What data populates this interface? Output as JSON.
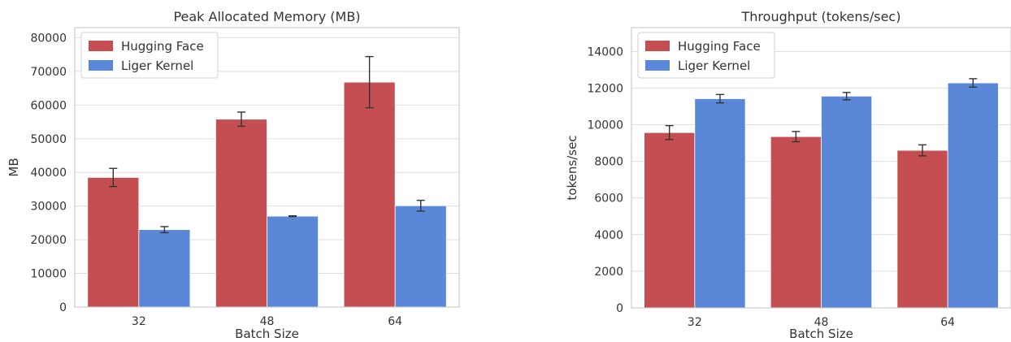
{
  "chart_data": [
    {
      "type": "bar",
      "title": "Peak Allocated Memory (MB)",
      "xlabel": "Batch Size",
      "ylabel": "MB",
      "categories": [
        "32",
        "48",
        "64"
      ],
      "ylim": [
        0,
        83000
      ],
      "yticks": [
        0,
        10000,
        20000,
        30000,
        40000,
        50000,
        60000,
        70000,
        80000
      ],
      "grid": true,
      "legend_position": "top-left",
      "series": [
        {
          "name": "Hugging Face",
          "color": "#c44e52",
          "values": [
            38500,
            55800,
            66800
          ],
          "errors": [
            2700,
            2100,
            7600
          ]
        },
        {
          "name": "Liger Kernel",
          "color": "#5b87d9",
          "values": [
            23000,
            27000,
            30100
          ],
          "errors": [
            900,
            100,
            1600
          ]
        }
      ]
    },
    {
      "type": "bar",
      "title": "Throughput (tokens/sec)",
      "xlabel": "Batch Size",
      "ylabel": "tokens/sec",
      "categories": [
        "32",
        "48",
        "64"
      ],
      "ylim": [
        0,
        15300
      ],
      "yticks": [
        0,
        2000,
        4000,
        6000,
        8000,
        10000,
        12000,
        14000
      ],
      "grid": true,
      "legend_position": "top-left",
      "series": [
        {
          "name": "Hugging Face",
          "color": "#c44e52",
          "values": [
            9570,
            9350,
            8600
          ],
          "errors": [
            380,
            280,
            300
          ]
        },
        {
          "name": "Liger Kernel",
          "color": "#5b87d9",
          "values": [
            11420,
            11560,
            12280
          ],
          "errors": [
            230,
            200,
            230
          ]
        }
      ]
    }
  ]
}
